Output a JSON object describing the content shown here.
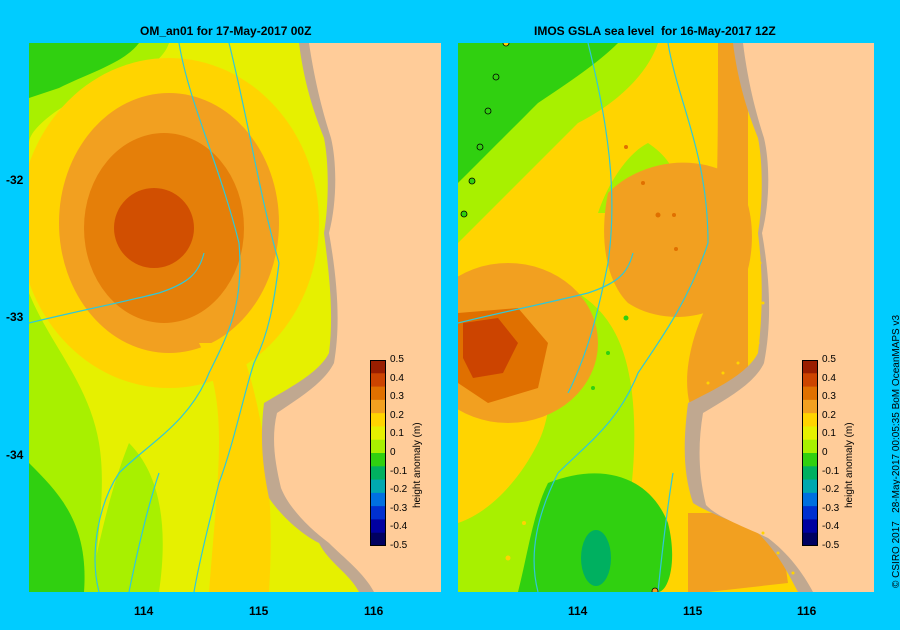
{
  "left_panel": {
    "title": "OM_an01 for 17-May-2017 00Z",
    "y_ticks": [
      "-32",
      "-33",
      "-34"
    ],
    "x_ticks": [
      "114",
      "115",
      "116"
    ]
  },
  "right_panel": {
    "title": "IMOS GSLA sea level  for 16-May-2017 12Z",
    "x_ticks": [
      "114",
      "115",
      "116"
    ]
  },
  "colorbar": {
    "title": "height anomaly (m)",
    "labels": [
      "0.5",
      "0.4",
      "0.3",
      "0.2",
      "0.1",
      "0",
      "-0.1",
      "-0.2",
      "-0.3",
      "-0.4",
      "-0.5"
    ],
    "colors": [
      "#9a1e00",
      "#cc4400",
      "#e07000",
      "#f2a020",
      "#ffd400",
      "#e6f000",
      "#a8f000",
      "#30d010",
      "#00b060",
      "#00a8b0",
      "#0070e0",
      "#0030d0",
      "#0000a0",
      "#000060"
    ]
  },
  "credit": "© CSIRO 2017   28-May-2017 00:05:35 BoM OceanMAPS v3",
  "colors": {
    "background": "#00ccff",
    "land": "#ffcc99",
    "shelf": "#c0a890",
    "contour_line": "#30c8d8"
  }
}
